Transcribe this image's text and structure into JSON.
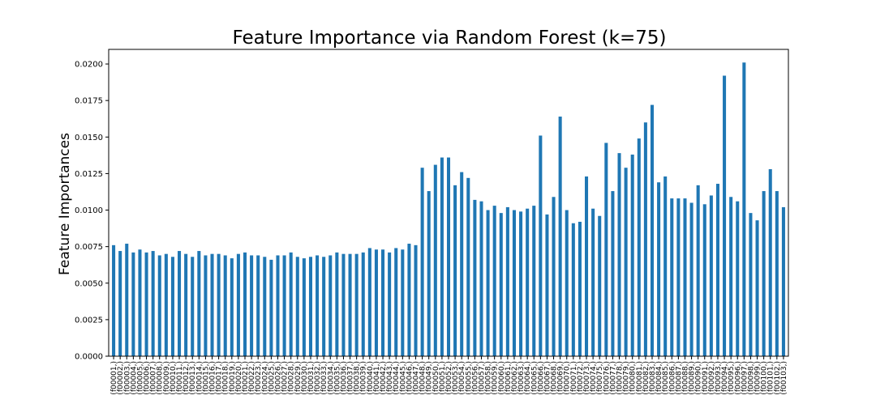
{
  "chart_data": {
    "type": "bar",
    "title": "Feature Importance via Random Forest (k=75)",
    "xlabel": "",
    "ylabel": "Feature Importances",
    "ylim": [
      0,
      0.021
    ],
    "yticks": [
      "0.0000",
      "0.0025",
      "0.0050",
      "0.0075",
      "0.0100",
      "0.0125",
      "0.0150",
      "0.0175",
      "0.0200"
    ],
    "ytick_values": [
      0,
      0.0025,
      0.005,
      0.0075,
      0.01,
      0.0125,
      0.015,
      0.0175,
      0.02
    ],
    "grid": false,
    "legend": "none",
    "bar_color": "#1f77b4",
    "categories": [
      "(f00001,)",
      "(f00002,)",
      "(f00003,)",
      "(f00004,)",
      "(f00005,)",
      "(f00006,)",
      "(f00007,)",
      "(f00008,)",
      "(f00009,)",
      "(f00010,)",
      "(f00011,)",
      "(f00012,)",
      "(f00013,)",
      "(f00014,)",
      "(f00015,)",
      "(f00016,)",
      "(f00017,)",
      "(f00018,)",
      "(f00019,)",
      "(f00020,)",
      "(f00021,)",
      "(f00022,)",
      "(f00023,)",
      "(f00024,)",
      "(f00025,)",
      "(f00026,)",
      "(f00027,)",
      "(f00028,)",
      "(f00029,)",
      "(f00030,)",
      "(f00031,)",
      "(f00032,)",
      "(f00033,)",
      "(f00034,)",
      "(f00035,)",
      "(f00036,)",
      "(f00037,)",
      "(f00038,)",
      "(f00039,)",
      "(f00040,)",
      "(f00041,)",
      "(f00042,)",
      "(f00043,)",
      "(f00044,)",
      "(f00045,)",
      "(f00046,)",
      "(f00047,)",
      "(f00048,)",
      "(f00049,)",
      "(f00050,)",
      "(f00051,)",
      "(f00052,)",
      "(f00053,)",
      "(f00054,)",
      "(f00055,)",
      "(f00056,)",
      "(f00057,)",
      "(f00058,)",
      "(f00059,)",
      "(f00060,)",
      "(f00061,)",
      "(f00062,)",
      "(f00063,)",
      "(f00064,)",
      "(f00065,)",
      "(f00066,)",
      "(f00067,)",
      "(f00068,)",
      "(f00069,)",
      "(f00070,)",
      "(f00071,)",
      "(f00072,)",
      "(f00073,)",
      "(f00074,)",
      "(f00075,)",
      "(f00076,)",
      "(f00077,)",
      "(f00078,)",
      "(f00079,)",
      "(f00080,)",
      "(f00081,)",
      "(f00082,)",
      "(f00083,)",
      "(f00084,)",
      "(f00085,)",
      "(f00086,)",
      "(f00087,)",
      "(f00088,)",
      "(f00089,)",
      "(f00090,)",
      "(f00091,)",
      "(f00092,)",
      "(f00093,)",
      "(f00094,)",
      "(f00095,)",
      "(f00096,)",
      "(f00097,)",
      "(f00098,)",
      "(f00099,)",
      "(f00100,)",
      "(f00101,)",
      "(f00102,)",
      "(f00103,)"
    ],
    "values": [
      0.0076,
      0.0072,
      0.0077,
      0.0071,
      0.0073,
      0.0071,
      0.0072,
      0.0069,
      0.007,
      0.0068,
      0.0072,
      0.007,
      0.0068,
      0.0072,
      0.0069,
      0.007,
      0.007,
      0.0069,
      0.0067,
      0.007,
      0.0071,
      0.0069,
      0.0069,
      0.0068,
      0.0066,
      0.0069,
      0.0069,
      0.0071,
      0.0068,
      0.0067,
      0.0068,
      0.0069,
      0.0068,
      0.0069,
      0.0071,
      0.007,
      0.007,
      0.007,
      0.0071,
      0.0074,
      0.0073,
      0.0073,
      0.0071,
      0.0074,
      0.0073,
      0.0077,
      0.0076,
      0.0129,
      0.0113,
      0.0131,
      0.0136,
      0.0136,
      0.0117,
      0.0126,
      0.0122,
      0.0107,
      0.0106,
      0.01,
      0.0103,
      0.0098,
      0.0102,
      0.01,
      0.0099,
      0.0101,
      0.0103,
      0.0151,
      0.0097,
      0.0109,
      0.0164,
      0.01,
      0.0091,
      0.0092,
      0.0123,
      0.0101,
      0.0096,
      0.0146,
      0.0113,
      0.0139,
      0.0129,
      0.0138,
      0.0149,
      0.016,
      0.0172,
      0.0119,
      0.0123,
      0.0108,
      0.0108,
      0.0108,
      0.0105,
      0.0117,
      0.0104,
      0.011,
      0.0118,
      0.0192,
      0.0109,
      0.0106,
      0.0201,
      0.0098,
      0.0093,
      0.0113,
      0.0128,
      0.0113,
      0.0102
    ]
  }
}
